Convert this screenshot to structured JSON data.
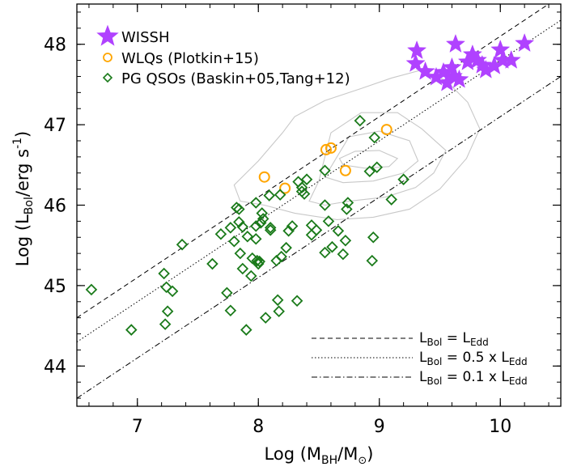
{
  "chart_data": {
    "type": "scatter",
    "xlabel": {
      "main": "Log (M",
      "sub": "BH",
      "mid": "/M",
      "sub2": "⊙",
      "end": ")"
    },
    "ylabel": {
      "main": "Log (L",
      "sub": "Bol",
      "mid": "/erg s",
      "sup": "-1",
      "end": ")"
    },
    "xlim": [
      6.5,
      10.5
    ],
    "ylim": [
      43.5,
      48.5
    ],
    "x_ticks": [
      7,
      8,
      9,
      10
    ],
    "y_ticks": [
      44,
      45,
      46,
      47,
      48
    ],
    "grid": false,
    "legend_position": "top-left",
    "series": [
      {
        "name": "WISSH",
        "marker": "star",
        "color": "#b042ff",
        "points": [
          [
            9.31,
            47.92
          ],
          [
            9.3,
            47.76
          ],
          [
            9.38,
            47.66
          ],
          [
            9.47,
            47.59
          ],
          [
            9.53,
            47.65
          ],
          [
            9.56,
            47.52
          ],
          [
            9.61,
            47.6
          ],
          [
            9.66,
            47.56
          ],
          [
            9.6,
            47.71
          ],
          [
            9.63,
            48.0
          ],
          [
            9.73,
            47.78
          ],
          [
            9.77,
            47.87
          ],
          [
            9.81,
            47.8
          ],
          [
            9.85,
            47.74
          ],
          [
            9.88,
            47.68
          ],
          [
            9.95,
            47.73
          ],
          [
            10.0,
            47.93
          ],
          [
            10.02,
            47.8
          ],
          [
            10.09,
            47.8
          ],
          [
            10.2,
            48.01
          ]
        ]
      },
      {
        "name": "WLQs (Plotkin+15)",
        "marker": "circle",
        "color": "#ffa500",
        "points": [
          [
            8.05,
            46.35
          ],
          [
            8.22,
            46.21
          ],
          [
            8.56,
            46.69
          ],
          [
            8.6,
            46.71
          ],
          [
            8.72,
            46.43
          ],
          [
            9.06,
            46.94
          ]
        ]
      },
      {
        "name": "PG QSOs (Baskin+05,Tang+12)",
        "marker": "diamond",
        "color": "#1a7a1a",
        "points": [
          [
            6.62,
            44.95
          ],
          [
            6.95,
            44.45
          ],
          [
            7.22,
            45.15
          ],
          [
            7.23,
            44.52
          ],
          [
            7.24,
            44.98
          ],
          [
            7.25,
            44.68
          ],
          [
            7.29,
            44.93
          ],
          [
            7.37,
            45.51
          ],
          [
            7.62,
            45.27
          ],
          [
            7.69,
            45.64
          ],
          [
            7.74,
            44.91
          ],
          [
            7.77,
            44.69
          ],
          [
            7.77,
            45.72
          ],
          [
            7.8,
            45.55
          ],
          [
            7.82,
            45.97
          ],
          [
            7.84,
            45.95
          ],
          [
            7.84,
            45.79
          ],
          [
            7.85,
            45.4
          ],
          [
            7.87,
            45.21
          ],
          [
            7.87,
            45.73
          ],
          [
            7.9,
            44.45
          ],
          [
            7.91,
            45.61
          ],
          [
            7.94,
            45.12
          ],
          [
            7.95,
            45.34
          ],
          [
            7.98,
            46.03
          ],
          [
            7.98,
            45.74
          ],
          [
            7.98,
            45.58
          ],
          [
            7.99,
            45.31
          ],
          [
            8.0,
            45.27
          ],
          [
            8.01,
            45.3
          ],
          [
            8.02,
            45.78
          ],
          [
            8.03,
            45.9
          ],
          [
            8.04,
            45.83
          ],
          [
            8.06,
            44.6
          ],
          [
            8.09,
            46.12
          ],
          [
            8.1,
            45.69
          ],
          [
            8.1,
            45.72
          ],
          [
            8.15,
            45.31
          ],
          [
            8.16,
            44.82
          ],
          [
            8.17,
            44.68
          ],
          [
            8.18,
            46.13
          ],
          [
            8.19,
            45.36
          ],
          [
            8.23,
            45.47
          ],
          [
            8.25,
            45.68
          ],
          [
            8.28,
            45.74
          ],
          [
            8.32,
            44.81
          ],
          [
            8.33,
            46.29
          ],
          [
            8.36,
            46.17
          ],
          [
            8.36,
            46.22
          ],
          [
            8.38,
            46.14
          ],
          [
            8.4,
            46.32
          ],
          [
            8.44,
            45.63
          ],
          [
            8.44,
            45.75
          ],
          [
            8.48,
            45.69
          ],
          [
            8.55,
            45.41
          ],
          [
            8.55,
            46.0
          ],
          [
            8.55,
            46.43
          ],
          [
            8.58,
            45.8
          ],
          [
            8.61,
            45.48
          ],
          [
            8.66,
            45.68
          ],
          [
            8.7,
            45.39
          ],
          [
            8.72,
            45.56
          ],
          [
            8.73,
            45.95
          ],
          [
            8.74,
            46.03
          ],
          [
            8.84,
            47.05
          ],
          [
            8.92,
            46.42
          ],
          [
            8.94,
            45.31
          ],
          [
            8.95,
            45.6
          ],
          [
            8.96,
            46.84
          ],
          [
            8.98,
            46.47
          ],
          [
            9.1,
            46.07
          ],
          [
            9.2,
            46.32
          ]
        ]
      }
    ],
    "contours": [
      [
        [
          8.67,
          46.58
        ],
        [
          8.8,
          46.67
        ],
        [
          9.0,
          46.68
        ],
        [
          9.15,
          46.58
        ],
        [
          9.08,
          46.48
        ],
        [
          8.88,
          46.46
        ],
        [
          8.7,
          46.5
        ]
      ],
      [
        [
          8.55,
          46.35
        ],
        [
          8.75,
          46.85
        ],
        [
          9.0,
          46.92
        ],
        [
          9.25,
          46.8
        ],
        [
          9.32,
          46.55
        ],
        [
          9.2,
          46.4
        ],
        [
          8.95,
          46.3
        ],
        [
          8.7,
          46.28
        ]
      ],
      [
        [
          8.42,
          46.05
        ],
        [
          8.5,
          46.3
        ],
        [
          8.55,
          46.6
        ],
        [
          8.6,
          46.9
        ],
        [
          8.85,
          47.15
        ],
        [
          9.15,
          47.15
        ],
        [
          9.35,
          46.95
        ],
        [
          9.55,
          46.68
        ],
        [
          9.45,
          46.4
        ],
        [
          9.3,
          46.22
        ],
        [
          9.05,
          46.1
        ],
        [
          8.75,
          46.05
        ],
        [
          8.55,
          46.0
        ]
      ],
      [
        [
          7.8,
          46.25
        ],
        [
          8.0,
          46.55
        ],
        [
          8.2,
          46.9
        ],
        [
          8.3,
          47.1
        ],
        [
          8.55,
          47.3
        ],
        [
          8.85,
          47.45
        ],
        [
          9.1,
          47.58
        ],
        [
          9.35,
          47.68
        ],
        [
          9.55,
          47.55
        ],
        [
          9.73,
          47.28
        ],
        [
          9.83,
          46.95
        ],
        [
          9.72,
          46.58
        ],
        [
          9.5,
          46.2
        ],
        [
          9.25,
          45.95
        ],
        [
          8.95,
          45.85
        ],
        [
          8.65,
          45.82
        ],
        [
          8.3,
          45.9
        ],
        [
          8.05,
          46.0
        ],
        [
          7.85,
          46.05
        ]
      ]
    ],
    "eddington_lines": [
      {
        "label_main": "L",
        "label_sub": "Bol",
        "label_rel": " = L",
        "label_sub2": "Edd",
        "label_end": "",
        "fraction": 1.0,
        "dash": "6,4"
      },
      {
        "label_main": "L",
        "label_sub": "Bol",
        "label_rel": " = 0.5 x L",
        "label_sub2": "Edd",
        "label_end": "",
        "fraction": 0.5,
        "dash": "1.5,2.5"
      },
      {
        "label_main": "L",
        "label_sub": "Bol",
        "label_rel": " = 0.1 x L",
        "label_sub2": "Edd",
        "label_end": "",
        "fraction": 0.1,
        "dash": "7,3,1.5,3"
      }
    ]
  }
}
